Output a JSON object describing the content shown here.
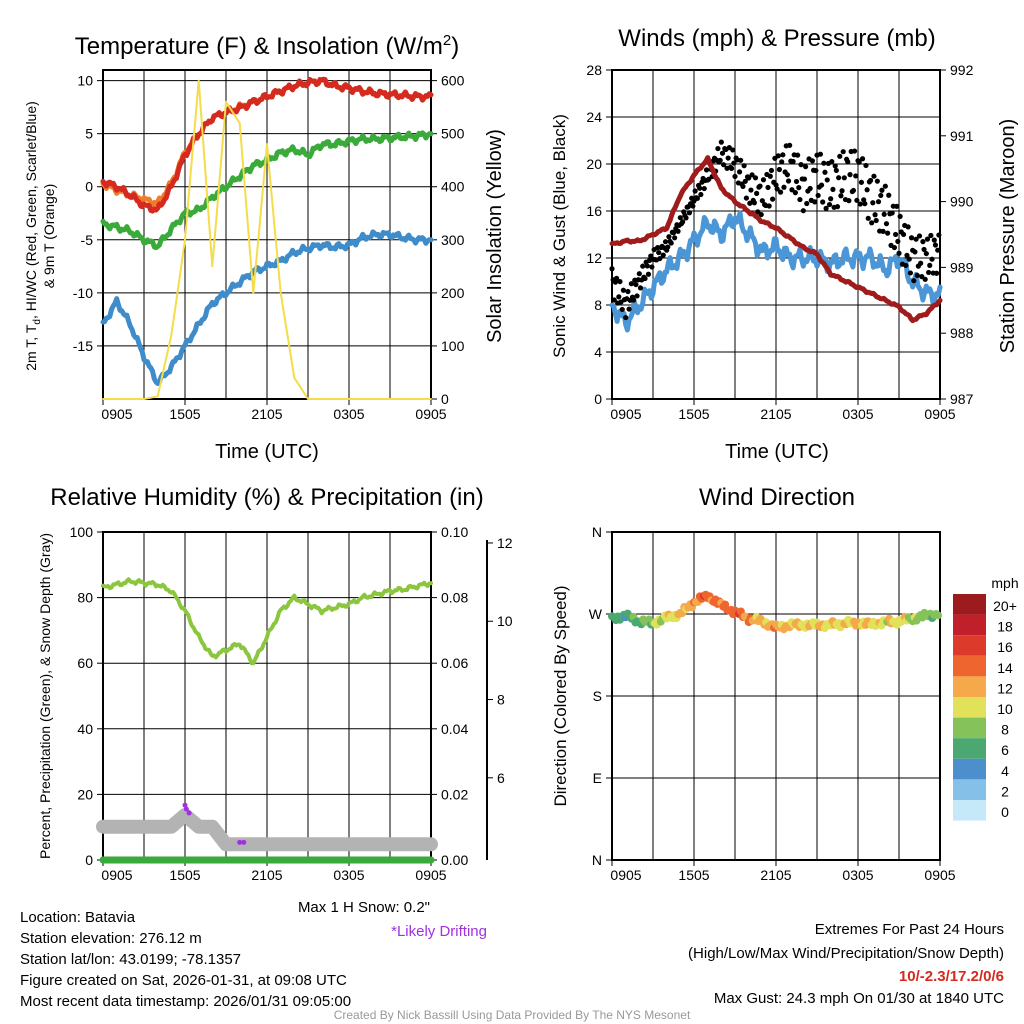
{
  "hours_x": [
    "0905",
    "1505",
    "2105",
    "0305",
    "0905"
  ],
  "chart_data": [
    {
      "type": "line",
      "title": "Temperature (F) & Insolation (W/m",
      "title_sup": "2",
      "title_end": ")",
      "xlabel": "Time (UTC)",
      "ylabel_a": "2m T, T",
      "ylabel_sub": "d",
      "ylabel_b": ", HI/WC (Red, Green, Scarlet/Blue)",
      "ylabel2": "& 9m T (Orange)",
      "y2label": "Solar Insolation (Yellow)",
      "ylim": [
        -20,
        11
      ],
      "y2lim": [
        0,
        620
      ],
      "yticks": [
        10,
        5,
        0,
        -5,
        -10,
        -15
      ],
      "y2ticks": [
        0,
        100,
        200,
        300,
        400,
        500,
        600
      ],
      "series": [
        {
          "name": "9m T",
          "color": "#f07b2a",
          "values": [
            0.3,
            -0.3,
            -0.8,
            -1.2,
            -1.6,
            0.3,
            3.2,
            5,
            6.5,
            7,
            7.5,
            8,
            8.5,
            9,
            9.5,
            9.8,
            10,
            9.5,
            9.3,
            9,
            8.8,
            8.7,
            8.6,
            8.5,
            8.5
          ]
        },
        {
          "name": "2m T",
          "color": "#d42a20",
          "values": [
            0.5,
            0,
            -0.8,
            -1.8,
            -2.2,
            0,
            3,
            5,
            6.5,
            7,
            7.4,
            8,
            8.5,
            9,
            9.5,
            9.8,
            10,
            9.5,
            9.3,
            9,
            8.8,
            8.7,
            8.6,
            8.5,
            8.5
          ]
        },
        {
          "name": "Td",
          "color": "#3aaa3a",
          "values": [
            -3.5,
            -3.8,
            -4.2,
            -5,
            -5.6,
            -4,
            -2.5,
            -2.2,
            -1,
            0,
            1,
            2,
            2.5,
            3.2,
            3.5,
            3,
            4,
            4,
            4.3,
            4.5,
            4.5,
            4.6,
            4.7,
            4.8,
            5
          ]
        },
        {
          "name": "WC",
          "color": "#3f8ccb",
          "values": [
            -13,
            -10.8,
            -13,
            -16,
            -18.5,
            -17,
            -15,
            -13,
            -11,
            -10,
            -9,
            -8,
            -7.5,
            -7,
            -6.2,
            -5.8,
            -5.5,
            -5.7,
            -5.5,
            -4.8,
            -4.5,
            -4.5,
            -4.8,
            -5,
            -5
          ]
        },
        {
          "name": "Solar",
          "color": "#f5dc4a",
          "axis": "y2",
          "values": [
            0,
            0,
            0,
            0,
            5,
            120,
            300,
            600,
            250,
            560,
            520,
            200,
            480,
            200,
            40,
            0,
            0,
            0,
            0,
            0,
            0,
            0,
            0,
            0,
            0
          ]
        }
      ]
    },
    {
      "type": "line",
      "title": "Winds (mph) & Pressure (mb)",
      "xlabel": "Time (UTC)",
      "ylabel": "Sonic Wind & Gust (Blue, Black)",
      "y2label": "Station Pressure (Maroon)",
      "ylim": [
        0,
        28
      ],
      "y2lim": [
        987,
        992
      ],
      "yticks": [
        0,
        4,
        8,
        12,
        16,
        20,
        24,
        28
      ],
      "y2ticks": [
        987,
        988,
        989,
        990,
        991,
        992
      ],
      "series": [
        {
          "name": "Sonic Wind",
          "color": "#4a96d6",
          "values": [
            8,
            6.5,
            8,
            9.5,
            11,
            12,
            13.5,
            15,
            14,
            15.5,
            14,
            12.5,
            13,
            12,
            12,
            12,
            11.5,
            12,
            12,
            12,
            11,
            12,
            10,
            9,
            8.8
          ]
        },
        {
          "name": "Gust",
          "color": "#000000",
          "type": "scatter",
          "values": [
            10,
            8,
            10,
            12,
            13,
            15,
            17,
            19,
            21,
            20,
            18,
            17,
            19,
            20,
            18,
            19,
            18,
            19,
            19,
            17,
            16,
            14,
            12,
            12,
            12.5
          ]
        },
        {
          "name": "Pressure",
          "color": "#a01c1c",
          "axis": "y2",
          "values": [
            989.35,
            989.4,
            989.4,
            989.5,
            989.6,
            990.1,
            990.4,
            990.65,
            990.2,
            990,
            989.85,
            989.7,
            989.6,
            989.45,
            989.3,
            989.2,
            988.9,
            988.8,
            988.7,
            988.6,
            988.5,
            988.4,
            988.2,
            988.3,
            988.5
          ]
        }
      ]
    },
    {
      "type": "line",
      "title": "Relative Humidity (%) & Precipitation (in)",
      "ylabel": "Percent, Precipitation (Green), & Snow Depth (Gray)",
      "ylim": [
        0,
        100
      ],
      "y2lim": [
        0,
        0.1
      ],
      "y3lim": [
        3.9,
        12.28
      ],
      "yticks": [
        0,
        20,
        40,
        60,
        80,
        100
      ],
      "y2ticks": [
        "0.00",
        "0.02",
        "0.04",
        "0.06",
        "0.08",
        "0.10"
      ],
      "y3ticks": [
        6,
        8,
        10,
        12
      ],
      "series": [
        {
          "name": "RH",
          "color": "#8cc63f",
          "values": [
            83,
            84,
            85,
            84.5,
            84,
            82,
            76,
            68,
            62,
            64,
            66,
            60,
            68,
            76,
            80,
            78,
            76,
            77,
            78,
            80,
            81,
            82,
            82.5,
            83.5,
            84.5
          ]
        },
        {
          "name": "Snow Depth",
          "color": "#b3b3b3",
          "axis": "y3",
          "values": [
            4.75,
            4.75,
            4.75,
            4.75,
            4.75,
            4.75,
            5.05,
            4.75,
            4.75,
            4.3,
            4.3,
            4.3,
            4.3,
            4.3,
            4.3,
            4.3,
            4.3,
            4.3,
            4.3,
            4.3,
            4.3,
            4.3,
            4.3,
            4.3,
            4.3
          ]
        },
        {
          "name": "Precipitation",
          "color": "#3aaa3a",
          "axis": "y2",
          "values": [
            0,
            0,
            0,
            0,
            0,
            0,
            0,
            0,
            0,
            0,
            0,
            0,
            0,
            0,
            0,
            0,
            0,
            0,
            0,
            0,
            0,
            0,
            0,
            0,
            0
          ]
        },
        {
          "name": "Likely Drifting",
          "color": "#a030e0",
          "type": "scatter",
          "axis": "y3",
          "points": [
            [
              6.0,
              5.3
            ],
            [
              6.1,
              5.2
            ],
            [
              6.3,
              5.1
            ],
            [
              10.0,
              4.35
            ],
            [
              10.3,
              4.35
            ]
          ]
        }
      ],
      "snow_note": "Max 1 H Snow: 0.2\"",
      "drift_note": "*Likely Drifting"
    },
    {
      "type": "scatter",
      "title": "Wind Direction",
      "ylabel": "Direction (Colored By Speed)",
      "ylim": [
        0,
        360
      ],
      "yticks": [
        {
          "v": 0,
          "label": "N"
        },
        {
          "v": 90,
          "label": "E"
        },
        {
          "v": 180,
          "label": "S"
        },
        {
          "v": 270,
          "label": "W"
        },
        {
          "v": 360,
          "label": "N"
        }
      ],
      "direction": [
        265,
        268,
        262,
        260,
        266,
        270,
        283,
        290,
        280,
        272,
        265,
        262,
        255,
        258,
        258,
        258,
        258,
        260,
        260,
        259,
        261,
        262,
        265,
        268,
        271
      ],
      "colorbar_title": "mph",
      "colorbar": [
        {
          "label": "20+",
          "color": "#9b1b1e"
        },
        {
          "label": "18",
          "color": "#c0202a"
        },
        {
          "label": "16",
          "color": "#dc3a2a"
        },
        {
          "label": "14",
          "color": "#ee6530"
        },
        {
          "label": "12",
          "color": "#f5a94a"
        },
        {
          "label": "10",
          "color": "#e1e15a"
        },
        {
          "label": "8",
          "color": "#86c25a"
        },
        {
          "label": "6",
          "color": "#4aa870"
        },
        {
          "label": "4",
          "color": "#4d8fcc"
        },
        {
          "label": "2",
          "color": "#85c0e8"
        },
        {
          "label": "0",
          "color": "#c6e9fa"
        }
      ]
    }
  ],
  "info": {
    "location": "Location: Batavia",
    "elevation": "Station elevation: 276.12 m",
    "latlon": "Station lat/lon: 43.0199; -78.1357",
    "created": "Figure created on Sat, 2026-01-31, at 09:08 UTC",
    "recent": "Most recent data timestamp: 2026/01/31 09:05:00"
  },
  "extremes": {
    "title": "Extremes For Past 24 Hours",
    "subtitle": "(High/Low/Max Wind/Precipitation/Snow Depth)",
    "values": "10/-2.3/17.2/0/6",
    "max_gust": "Max Gust: 24.3 mph On 01/30 at 1840 UTC",
    "value_color": "#d42a20"
  },
  "credit": "Created By Nick Bassill Using Data Provided By The NYS Mesonet"
}
